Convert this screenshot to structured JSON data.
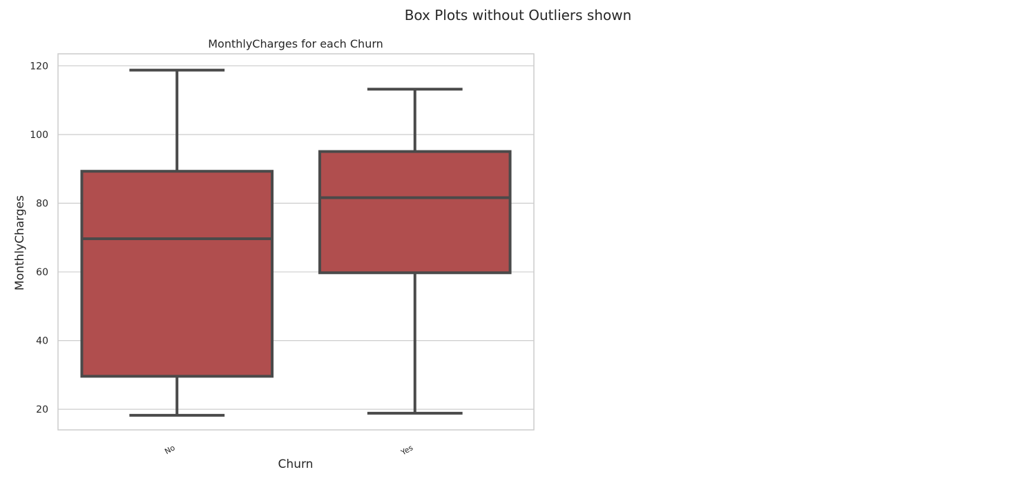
{
  "figure": {
    "suptitle": "Box Plots without Outliers shown"
  },
  "chart_data": {
    "type": "box",
    "title": "MonthlyCharges for each Churn",
    "xlabel": "Churn",
    "ylabel": "MonthlyCharges",
    "ylim": [
      14,
      123.5
    ],
    "yticks": [
      20,
      40,
      60,
      80,
      100,
      120
    ],
    "grid": true,
    "categories": [
      "No",
      "Yes"
    ],
    "boxes": [
      {
        "category": "No",
        "whislo": 18.25,
        "q1": 29.6,
        "median": 69.65,
        "q3": 89.3,
        "whishi": 118.75
      },
      {
        "category": "Yes",
        "whislo": 18.85,
        "q1": 59.75,
        "median": 81.6,
        "q3": 95.05,
        "whishi": 113.2
      }
    ],
    "colors": {
      "box_fill": "#b04e4e",
      "line": "#4a4a4a",
      "grid": "#cccccc",
      "spine": "#cccccc"
    }
  }
}
